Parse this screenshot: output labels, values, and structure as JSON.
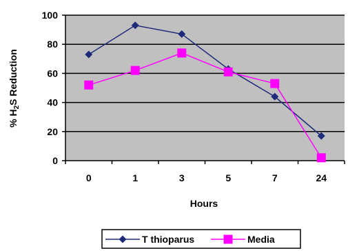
{
  "chart_data": {
    "type": "line",
    "categories": [
      "0",
      "1",
      "3",
      "5",
      "7",
      "24"
    ],
    "series": [
      {
        "name": "T thioparus",
        "values": [
          73,
          93,
          87,
          63,
          44,
          17
        ],
        "color": "#1F2A7A",
        "marker": "diamond"
      },
      {
        "name": "Media",
        "values": [
          52,
          62,
          74,
          61,
          53,
          2
        ],
        "color": "#FF00FF",
        "marker": "square"
      }
    ],
    "xlabel": "Hours",
    "ylabel_parts": [
      "% H",
      "2",
      "S Reduction"
    ],
    "ylim": [
      0,
      100
    ],
    "yticks": [
      "0",
      "20",
      "40",
      "60",
      "80",
      "100"
    ],
    "plot_background": "#C0C0C0",
    "grid": true,
    "legend_position": "bottom"
  }
}
